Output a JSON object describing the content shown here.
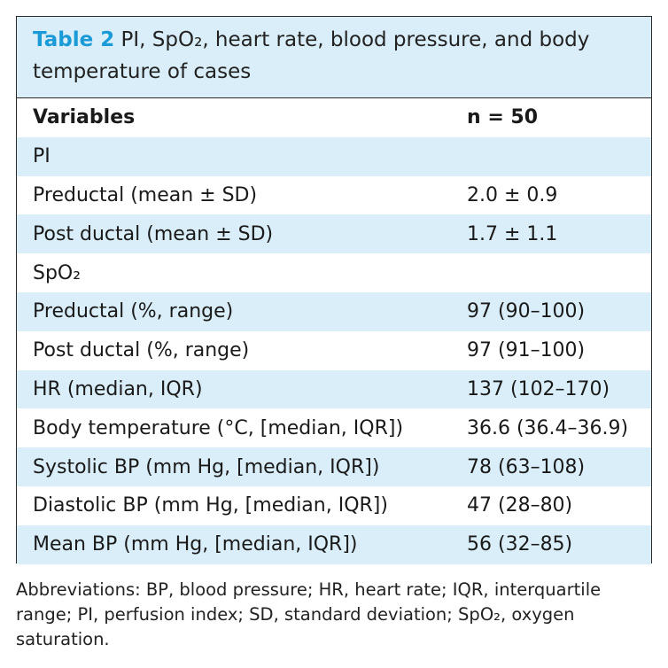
{
  "table": {
    "caption_label": "Table 2",
    "caption_text": "PI, SpO₂, heart rate, blood pressure, and body temperature of cases",
    "header": {
      "variables": "Variables",
      "n": "n = 50"
    },
    "rows": [
      {
        "variable": "PI",
        "value": ""
      },
      {
        "variable": "Preductal (mean ± SD)",
        "value": "2.0 ± 0.9"
      },
      {
        "variable": "Post ductal (mean ± SD)",
        "value": "1.7 ± 1.1"
      },
      {
        "variable": "SpO₂",
        "value": ""
      },
      {
        "variable": "Preductal (%, range)",
        "value": "97 (90–100)"
      },
      {
        "variable": "Post ductal (%, range)",
        "value": "97 (91–100)"
      },
      {
        "variable": "HR (median, IQR)",
        "value": "137 (102–170)"
      },
      {
        "variable": "Body temperature (°C, [median, IQR])",
        "value": "36.6 (36.4–36.9)"
      },
      {
        "variable": "Systolic BP (mm Hg, [median, IQR])",
        "value": "78 (63–108)"
      },
      {
        "variable": "Diastolic BP (mm Hg, [median, IQR])",
        "value": "47 (28–80)"
      },
      {
        "variable": "Mean BP (mm Hg, [median, IQR])",
        "value": "56 (32–85)"
      }
    ]
  },
  "footnote": "Abbreviations: BP, blood pressure; HR, heart rate; IQR, interquartile range; PI, perfusion index; SD, standard deviation; SpO₂, oxygen saturation.",
  "colors": {
    "accent": "#1a9bd7",
    "shade": "#d9eef8",
    "border": "#2a2a2a"
  }
}
